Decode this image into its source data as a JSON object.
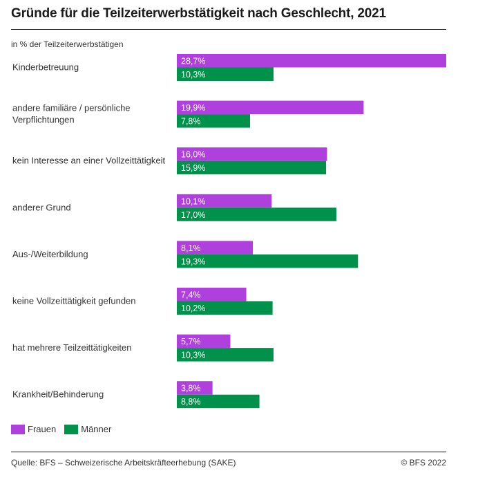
{
  "title": "Gründe für die Teilzeiterwerbstätigkeit nach Geschlecht, 2021",
  "subtitle": "in % der Teilzeiterwerbstätigen",
  "colors": {
    "frauen": "#b040dd",
    "maenner": "#00924a"
  },
  "legend": [
    {
      "label": "Frauen",
      "series": "frauen"
    },
    {
      "label": "Männer",
      "series": "maenner"
    }
  ],
  "footer": {
    "source": "Quelle: BFS – Schweizerische Arbeitskräfteerhebung (SAKE)",
    "copyright": "© BFS 2022"
  },
  "chart_data": {
    "type": "bar",
    "orientation": "horizontal",
    "title": "Gründe für die Teilzeiterwerbstätigkeit nach Geschlecht, 2021",
    "subtitle": "in % der Teilzeiterwerbstätigen",
    "xlabel": "",
    "ylabel": "",
    "xlim": [
      0,
      28.7
    ],
    "grid": false,
    "legend_position": "bottom-left",
    "categories": [
      [
        "Kinderbetreuung"
      ],
      [
        "andere familiäre / persönliche",
        "Verpflichtungen"
      ],
      [
        "kein Interesse an einer Vollzeittätigkeit"
      ],
      [
        "anderer Grund"
      ],
      [
        "Aus-/Weiterbildung"
      ],
      [
        "keine Vollzeittätigkeit gefunden"
      ],
      [
        "hat mehrere Teilzeittätigkeiten"
      ],
      [
        "Krankheit/Behinderung"
      ]
    ],
    "series": [
      {
        "name": "Frauen",
        "key": "frauen",
        "values": [
          28.7,
          19.9,
          16.0,
          10.1,
          8.1,
          7.4,
          5.7,
          3.8
        ],
        "labels": [
          "28,7%",
          "19,9%",
          "16,0%",
          "10,1%",
          "8,1%",
          "7,4%",
          "5,7%",
          "3,8%"
        ]
      },
      {
        "name": "Männer",
        "key": "maenner",
        "values": [
          10.3,
          7.8,
          15.9,
          17.0,
          19.3,
          10.2,
          10.3,
          8.8
        ],
        "labels": [
          "10,3%",
          "7,8%",
          "15,9%",
          "17,0%",
          "19,3%",
          "10,2%",
          "10,3%",
          "8,8%"
        ]
      }
    ]
  }
}
